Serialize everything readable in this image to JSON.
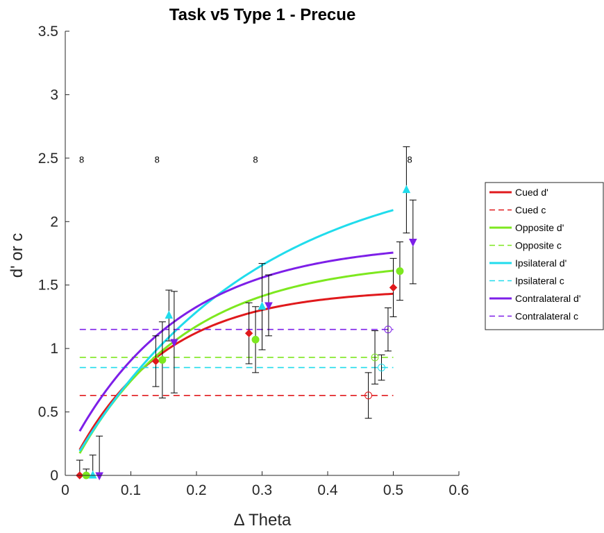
{
  "chart_data": {
    "type": "scatter",
    "title": "Task v5 Type 1 - Precue",
    "xlabel": "Δ Theta",
    "ylabel": "d' or c",
    "xlim": [
      0,
      0.6
    ],
    "ylim": [
      0,
      3.5
    ],
    "xticks": [
      0,
      0.1,
      0.2,
      0.3,
      0.4,
      0.5,
      0.6
    ],
    "xtick_labels": [
      "0",
      "0.1",
      "0.2",
      "0.3",
      "0.4",
      "0.5",
      "0.6"
    ],
    "yticks": [
      0,
      0.5,
      1,
      1.5,
      2,
      2.5,
      3,
      3.5
    ],
    "ytick_labels": [
      "0",
      "0.5",
      "1",
      "1.5",
      "2",
      "2.5",
      "3",
      "3.5"
    ],
    "grid": false,
    "legend_position": "right",
    "n_labels": [
      {
        "x": 0.025,
        "y": 2.49,
        "text": "8"
      },
      {
        "x": 0.14,
        "y": 2.49,
        "text": "8"
      },
      {
        "x": 0.29,
        "y": 2.49,
        "text": "8"
      },
      {
        "x": 0.525,
        "y": 2.49,
        "text": "8"
      }
    ],
    "series": [
      {
        "name": "Cued d'",
        "color": "#e0191c",
        "style": "solid",
        "curve": {
          "A": 1.47,
          "k": 7.3,
          "x0": 0.0017,
          "x_range": [
            0.022,
            0.5
          ]
        },
        "points": [
          {
            "x": 0.022,
            "y": 0.0,
            "err": 0.12
          },
          {
            "x": 0.138,
            "y": 0.9,
            "err": 0.2
          },
          {
            "x": 0.28,
            "y": 1.12,
            "err": 0.24
          },
          {
            "x": 0.5,
            "y": 1.48,
            "err": 0.23
          }
        ],
        "marker": "diamond"
      },
      {
        "name": "Cued c",
        "color": "#e0191c",
        "style": "dashed",
        "level": 0.63,
        "x_range": [
          0.022,
          0.5
        ],
        "points": [
          {
            "x": 0.462,
            "y": 0.63,
            "err": 0.18
          }
        ],
        "marker": "circle-open"
      },
      {
        "name": "Opposite d'",
        "color": "#7de81f",
        "style": "solid",
        "curve": {
          "A": 1.7,
          "k": 6.0,
          "x0": 0.004,
          "x_range": [
            0.022,
            0.5
          ]
        },
        "points": [
          {
            "x": 0.032,
            "y": 0.0,
            "err": 0.05
          },
          {
            "x": 0.148,
            "y": 0.91,
            "err": 0.3
          },
          {
            "x": 0.29,
            "y": 1.07,
            "err": 0.26
          },
          {
            "x": 0.51,
            "y": 1.61,
            "err": 0.23
          }
        ],
        "marker": "circle"
      },
      {
        "name": "Opposite c",
        "color": "#7de81f",
        "style": "dashed",
        "level": 0.93,
        "x_range": [
          0.022,
          0.5
        ],
        "points": [
          {
            "x": 0.472,
            "y": 0.93,
            "err": 0.21
          }
        ],
        "marker": "circle-open"
      },
      {
        "name": "Ipsilateral d'",
        "color": "#20dcec",
        "style": "solid",
        "curve": {
          "A": 2.5,
          "k": 3.62,
          "x0": 0.0,
          "x_range": [
            0.022,
            0.5
          ]
        },
        "points": [
          {
            "x": 0.042,
            "y": 0.0,
            "err": 0.16
          },
          {
            "x": 0.158,
            "y": 1.26,
            "err": 0.2
          },
          {
            "x": 0.3,
            "y": 1.33,
            "err": 0.34
          },
          {
            "x": 0.52,
            "y": 2.25,
            "err": 0.34
          }
        ],
        "marker": "triangle-up"
      },
      {
        "name": "Ipsilateral c",
        "color": "#20dcec",
        "style": "dashed",
        "level": 0.85,
        "x_range": [
          0.022,
          0.5
        ],
        "points": [
          {
            "x": 0.482,
            "y": 0.85,
            "err": 0.1
          }
        ],
        "marker": "circle-open"
      },
      {
        "name": "Contralateral d'",
        "color": "#7d1fe8",
        "style": "solid",
        "curve": {
          "A": 1.84,
          "k": 6.0,
          "x0": -0.013,
          "x_range": [
            0.022,
            0.5
          ]
        },
        "points": [
          {
            "x": 0.052,
            "y": 0.0,
            "err": 0.31
          },
          {
            "x": 0.166,
            "y": 1.05,
            "err": 0.4
          },
          {
            "x": 0.31,
            "y": 1.34,
            "err": 0.24
          },
          {
            "x": 0.53,
            "y": 1.84,
            "err": 0.33
          }
        ],
        "marker": "triangle-down"
      },
      {
        "name": "Contralateral c",
        "color": "#7d1fe8",
        "style": "dashed",
        "level": 1.15,
        "x_range": [
          0.022,
          0.5
        ],
        "points": [
          {
            "x": 0.492,
            "y": 1.15,
            "err": 0.17
          }
        ],
        "marker": "circle-open"
      }
    ]
  }
}
